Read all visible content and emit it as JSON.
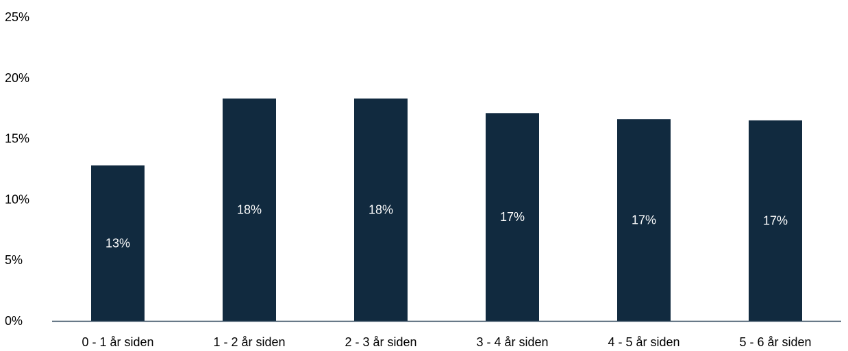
{
  "chart_data": {
    "type": "bar",
    "categories": [
      "0 - 1 år siden",
      "1 - 2 år siden",
      "2 - 3 år siden",
      "3 - 4 år siden",
      "4 - 5 år siden",
      "5 - 6 år siden"
    ],
    "values": [
      12.8,
      18.3,
      18.3,
      17.1,
      16.6,
      16.5
    ],
    "data_labels": [
      "13%",
      "18%",
      "18%",
      "17%",
      "17%",
      "17%"
    ],
    "ylim": [
      0,
      25
    ],
    "yticks": [
      "0%",
      "5%",
      "10%",
      "15%",
      "20%",
      "25%"
    ],
    "ytick_values": [
      0,
      5,
      10,
      15,
      20,
      25
    ],
    "grid": false,
    "legend": "none",
    "title": "",
    "xlabel": "",
    "ylabel": "",
    "colors": {
      "bar": "#112a3f",
      "axis": "#2b4358",
      "data_label": "#ffffff",
      "tick_label": "#000000"
    }
  }
}
